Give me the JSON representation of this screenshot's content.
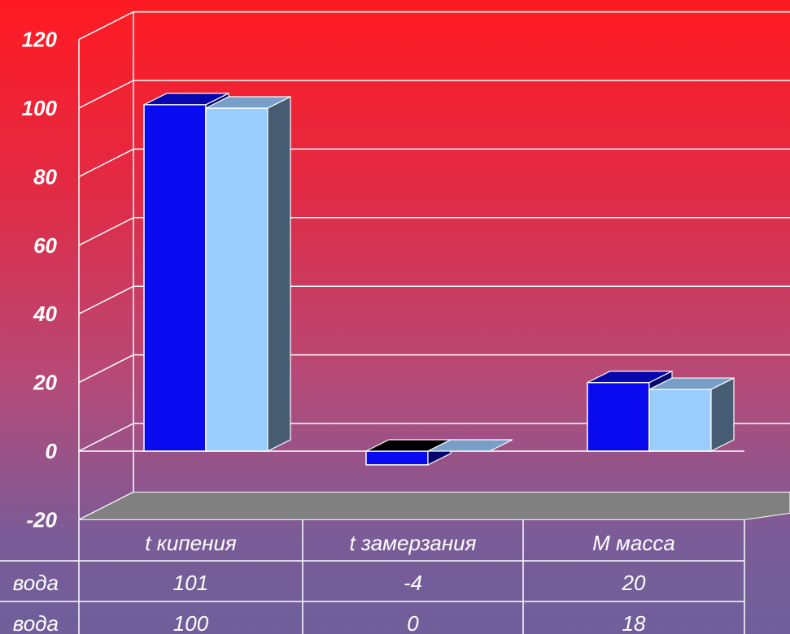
{
  "chart_data": {
    "type": "bar",
    "categories": [
      "t кипения",
      "t замерзания",
      "M  масса"
    ],
    "series": [
      {
        "name": "вода",
        "values": [
          101,
          -4,
          20
        ],
        "color": "#0a0af0"
      },
      {
        "name": "вода",
        "values": [
          100,
          0,
          18
        ],
        "color": "#99ccff"
      }
    ],
    "ylim": [
      -20,
      120
    ],
    "yticks": [
      "-20",
      "0",
      "20",
      "40",
      "60",
      "80",
      "100",
      "120"
    ],
    "grid": true,
    "table": {
      "rows": [
        {
          "label": "вода",
          "values": [
            "101",
            "-4",
            "20"
          ]
        },
        {
          "label": "вода",
          "values": [
            "100",
            "0",
            "18"
          ]
        }
      ]
    }
  }
}
